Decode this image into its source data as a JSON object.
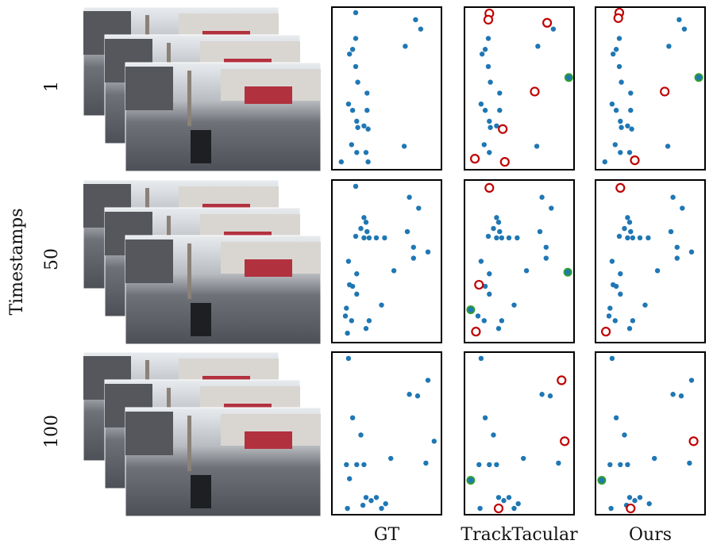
{
  "figure": {
    "y_label": "Timestamps",
    "columns": [
      "GT",
      "TrackTacular",
      "Ours"
    ],
    "rows": [
      {
        "label": "1",
        "panels": [
          {
            "blue": [
              [
                20,
                1.5
              ],
              [
                78,
                6
              ],
              [
                83,
                12
              ],
              [
                20,
                18
              ],
              [
                17,
                25
              ],
              [
                14,
                28
              ],
              [
                68,
                23
              ],
              [
                20,
                36
              ],
              [
                22,
                46
              ],
              [
                31,
                53
              ],
              [
                13,
                60
              ],
              [
                31,
                64
              ],
              [
                17,
                64
              ],
              [
                21,
                71
              ],
              [
                22,
                75
              ],
              [
                28,
                74
              ],
              [
                32,
                76
              ],
              [
                16,
                86
              ],
              [
                67,
                87
              ],
              [
                21,
                91
              ],
              [
                30,
                91
              ],
              [
                32,
                97
              ],
              [
                6,
                97
              ]
            ]
          },
          {
            "blue": [
              [
                14,
                28
              ],
              [
                20,
                18
              ],
              [
                17,
                25
              ],
              [
                68,
                23
              ],
              [
                20,
                36
              ],
              [
                22,
                46
              ],
              [
                31,
                53
              ],
              [
                13,
                60
              ],
              [
                31,
                64
              ],
              [
                17,
                64
              ],
              [
                21,
                71
              ],
              [
                22,
                75
              ],
              [
                28,
                74
              ],
              [
                16,
                86
              ],
              [
                67,
                87
              ],
              [
                21,
                91
              ],
              [
                83,
                12
              ]
            ],
            "red": [
              [
                21,
                2
              ],
              [
                20,
                6
              ],
              [
                77,
                8
              ],
              [
                65,
                52
              ],
              [
                34,
                76
              ],
              [
                7,
                95
              ],
              [
                36,
                97
              ]
            ],
            "green": [
              [
                98,
                43
              ]
            ]
          },
          {
            "blue": [
              [
                78,
                6
              ],
              [
                83,
                12
              ],
              [
                20,
                18
              ],
              [
                17,
                25
              ],
              [
                14,
                28
              ],
              [
                68,
                23
              ],
              [
                20,
                36
              ],
              [
                22,
                46
              ],
              [
                31,
                53
              ],
              [
                13,
                60
              ],
              [
                31,
                64
              ],
              [
                17,
                64
              ],
              [
                21,
                71
              ],
              [
                22,
                75
              ],
              [
                28,
                74
              ],
              [
                32,
                76
              ],
              [
                16,
                86
              ],
              [
                67,
                87
              ],
              [
                21,
                91
              ],
              [
                30,
                91
              ],
              [
                6,
                97
              ]
            ],
            "red": [
              [
                20,
                1.5
              ],
              [
                19,
                5
              ],
              [
                64,
                52
              ],
              [
                35,
                96
              ]
            ],
            "green": [
              [
                97,
                43
              ]
            ]
          }
        ]
      },
      {
        "label": "50",
        "panels": [
          {
            "blue": [
              [
                20,
                2
              ],
              [
                72,
                9
              ],
              [
                81,
                16
              ],
              [
                28,
                22
              ],
              [
                30,
                25
              ],
              [
                25,
                29
              ],
              [
                31,
                31
              ],
              [
                20,
                34
              ],
              [
                28,
                35
              ],
              [
                33,
                35
              ],
              [
                40,
                35
              ],
              [
                48,
                35
              ],
              [
                70,
                31
              ],
              [
                76,
                41
              ],
              [
                90,
                44
              ],
              [
                76,
                48
              ],
              [
                13,
                50
              ],
              [
                57,
                56
              ],
              [
                21,
                58
              ],
              [
                14,
                65
              ],
              [
                17,
                66
              ],
              [
                21,
                71
              ],
              [
                45,
                78
              ],
              [
                11,
                80
              ],
              [
                10,
                85
              ],
              [
                16,
                88
              ],
              [
                33,
                88
              ],
              [
                30,
                93
              ],
              [
                12,
                96
              ]
            ]
          },
          {
            "blue": [
              [
                72,
                9
              ],
              [
                81,
                16
              ],
              [
                28,
                22
              ],
              [
                30,
                25
              ],
              [
                25,
                29
              ],
              [
                31,
                31
              ],
              [
                20,
                34
              ],
              [
                28,
                35
              ],
              [
                33,
                35
              ],
              [
                40,
                35
              ],
              [
                48,
                35
              ],
              [
                70,
                31
              ],
              [
                76,
                41
              ],
              [
                76,
                48
              ],
              [
                13,
                50
              ],
              [
                57,
                56
              ],
              [
                21,
                58
              ],
              [
                17,
                66
              ],
              [
                21,
                71
              ],
              [
                45,
                78
              ],
              [
                10,
                85
              ],
              [
                16,
                88
              ],
              [
                33,
                88
              ],
              [
                30,
                93
              ]
            ],
            "red": [
              [
                21,
                3
              ],
              [
                11,
                65
              ],
              [
                8,
                95
              ]
            ],
            "green": [
              [
                97,
                57
              ],
              [
                3,
                81
              ]
            ]
          },
          {
            "blue": [
              [
                72,
                9
              ],
              [
                81,
                16
              ],
              [
                28,
                22
              ],
              [
                30,
                25
              ],
              [
                25,
                29
              ],
              [
                31,
                31
              ],
              [
                20,
                34
              ],
              [
                28,
                35
              ],
              [
                33,
                35
              ],
              [
                40,
                35
              ],
              [
                48,
                35
              ],
              [
                70,
                31
              ],
              [
                76,
                41
              ],
              [
                90,
                44
              ],
              [
                76,
                48
              ],
              [
                13,
                50
              ],
              [
                57,
                56
              ],
              [
                21,
                58
              ],
              [
                14,
                65
              ],
              [
                17,
                66
              ],
              [
                21,
                71
              ],
              [
                45,
                78
              ],
              [
                11,
                80
              ],
              [
                10,
                85
              ],
              [
                16,
                88
              ],
              [
                33,
                88
              ],
              [
                30,
                93
              ]
            ],
            "red": [
              [
                21,
                3
              ],
              [
                7,
                95
              ]
            ]
          }
        ]
      },
      {
        "label": "100",
        "panels": [
          {
            "blue": [
              [
                13,
                2
              ],
              [
                90,
                16
              ],
              [
                72,
                25
              ],
              [
                80,
                26
              ],
              [
                17,
                40
              ],
              [
                25,
                51
              ],
              [
                96,
                55
              ],
              [
                11,
                70
              ],
              [
                21,
                70
              ],
              [
                28,
                70
              ],
              [
                54,
                66
              ],
              [
                88,
                69
              ],
              [
                14,
                79
              ],
              [
                30,
                91
              ],
              [
                40,
                91
              ],
              [
                35,
                93
              ],
              [
                49,
                95
              ],
              [
                27,
                96
              ],
              [
                45,
                98
              ],
              [
                12,
                98
              ]
            ]
          },
          {
            "blue": [
              [
                13,
                2
              ],
              [
                72,
                25
              ],
              [
                80,
                26
              ],
              [
                17,
                40
              ],
              [
                25,
                51
              ],
              [
                11,
                70
              ],
              [
                21,
                70
              ],
              [
                28,
                70
              ],
              [
                54,
                66
              ],
              [
                88,
                69
              ],
              [
                30,
                91
              ],
              [
                40,
                91
              ],
              [
                35,
                93
              ],
              [
                49,
                95
              ],
              [
                45,
                98
              ],
              [
                12,
                98
              ]
            ],
            "red": [
              [
                91,
                16
              ],
              [
                94,
                55
              ],
              [
                30,
                98
              ]
            ],
            "green": [
              [
                3,
                80
              ]
            ]
          },
          {
            "blue": [
              [
                13,
                2
              ],
              [
                90,
                16
              ],
              [
                72,
                25
              ],
              [
                80,
                26
              ],
              [
                17,
                40
              ],
              [
                25,
                51
              ],
              [
                11,
                70
              ],
              [
                21,
                70
              ],
              [
                28,
                70
              ],
              [
                54,
                66
              ],
              [
                88,
                69
              ],
              [
                30,
                91
              ],
              [
                40,
                91
              ],
              [
                35,
                93
              ],
              [
                49,
                95
              ],
              [
                27,
                96
              ],
              [
                12,
                98
              ]
            ],
            "red": [
              [
                92,
                55
              ],
              [
                31,
                98
              ]
            ],
            "green": [
              [
                3,
                80
              ]
            ]
          }
        ]
      }
    ]
  }
}
